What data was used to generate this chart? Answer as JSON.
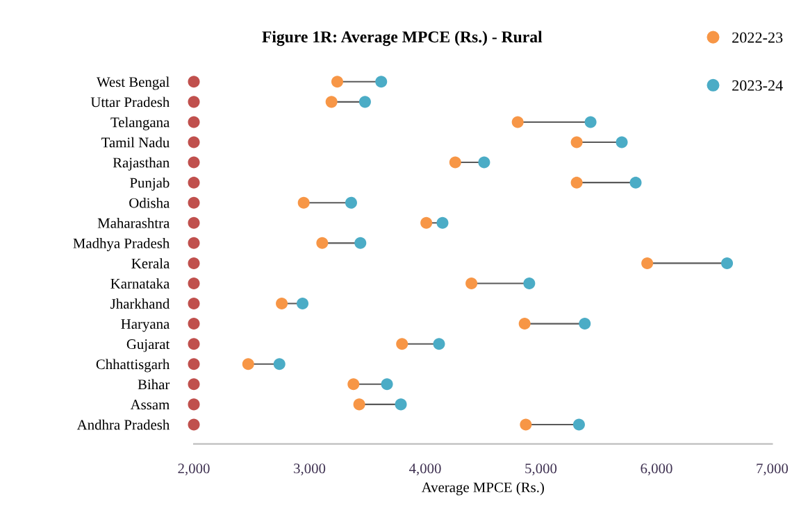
{
  "chart_data": {
    "type": "scatter",
    "orientation": "horizontal",
    "title": "Figure 1R: Average MPCE (Rs.) - Rural",
    "xlabel": "Average MPCE (Rs.)",
    "categories": [
      "West Bengal",
      "Uttar Pradesh",
      "Telangana",
      "Tamil Nadu",
      "Rajasthan",
      "Punjab",
      "Odisha",
      "Maharashtra",
      "Madhya Pradesh",
      "Kerala",
      "Karnataka",
      "Jharkhand",
      "Haryana",
      "Gujarat",
      "Chhattisgarh",
      "Bihar",
      "Assam",
      "Andhra Pradesh"
    ],
    "series": [
      {
        "color": "#c0504d",
        "values": [
          2000,
          2000,
          2000,
          2000,
          2000,
          2000,
          2000,
          2000,
          2000,
          2000,
          2000,
          2000,
          2000,
          2000,
          2000,
          2000,
          2000,
          2000
        ]
      },
      {
        "name": "2022-23",
        "color": "#f79646",
        "values": [
          3240,
          3190,
          4800,
          5310,
          4260,
          5310,
          2950,
          4010,
          3110,
          5920,
          4400,
          2760,
          4860,
          3800,
          2470,
          3380,
          3430,
          4870
        ]
      },
      {
        "name": "2023-24",
        "color": "#4bacc6",
        "values": [
          3620,
          3480,
          5430,
          5700,
          4510,
          5820,
          3360,
          4150,
          3440,
          6610,
          4900,
          2940,
          5380,
          4120,
          2740,
          3670,
          3790,
          5330
        ]
      }
    ],
    "xlim": [
      2000,
      7000
    ],
    "xticks": [
      {
        "value": 2000,
        "label": "2,000"
      },
      {
        "value": 3000,
        "label": "3,000"
      },
      {
        "value": 4000,
        "label": "4,000"
      },
      {
        "value": 5000,
        "label": "5,000"
      },
      {
        "value": 6000,
        "label": "6,000"
      },
      {
        "value": 7000,
        "label": "7,000"
      }
    ],
    "marker": "circle",
    "legend": "top right"
  }
}
